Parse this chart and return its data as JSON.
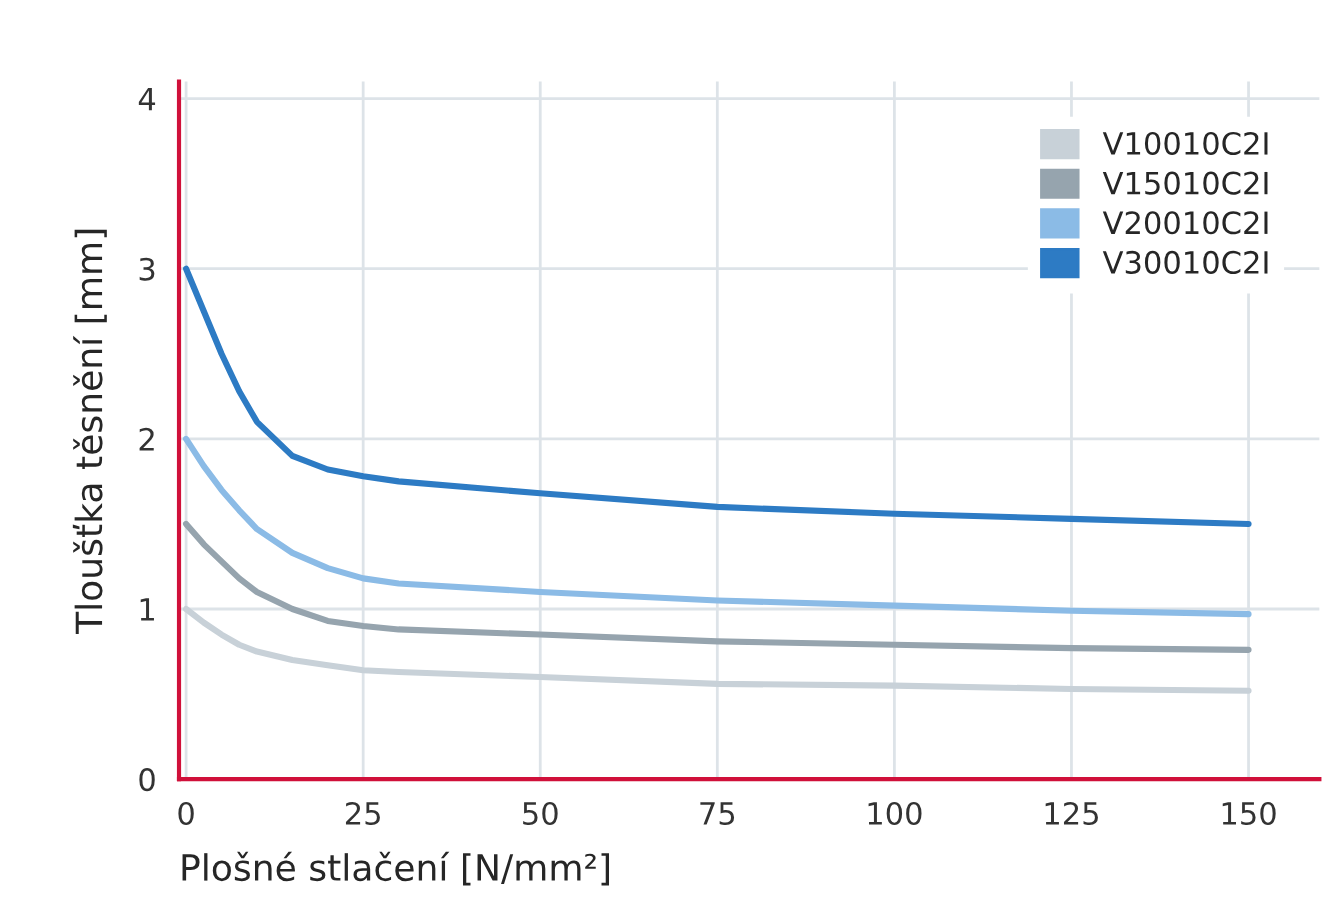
{
  "chart_data": {
    "type": "line",
    "xlabel": "Plošné stlačení [N/mm²]",
    "ylabel": "Tloušťka těsnění [mm]",
    "xlim": [
      -1,
      160
    ],
    "ylim": [
      0,
      4.1
    ],
    "xticks": [
      0,
      25,
      50,
      75,
      100,
      125,
      150
    ],
    "yticks": [
      0,
      1,
      2,
      3,
      4
    ],
    "grid": true,
    "legend": "top right",
    "marker": "none",
    "line_style": "solid",
    "x": [
      0,
      2.5,
      5,
      7.5,
      10,
      15,
      20,
      25,
      30,
      50,
      75,
      100,
      125,
      150
    ],
    "series": [
      {
        "name": "V10010C2I",
        "color": "#c8d1d8",
        "values": [
          1.0,
          0.92,
          0.85,
          0.79,
          0.75,
          0.7,
          0.67,
          0.64,
          0.63,
          0.6,
          0.56,
          0.55,
          0.53,
          0.52
        ]
      },
      {
        "name": "V15010C2I",
        "color": "#96a4ae",
        "values": [
          1.5,
          1.38,
          1.28,
          1.18,
          1.1,
          1.0,
          0.93,
          0.9,
          0.88,
          0.85,
          0.81,
          0.79,
          0.77,
          0.76
        ]
      },
      {
        "name": "V20010C2I",
        "color": "#8bbbe6",
        "values": [
          2.0,
          1.84,
          1.7,
          1.58,
          1.47,
          1.33,
          1.24,
          1.18,
          1.15,
          1.1,
          1.05,
          1.02,
          0.99,
          0.97
        ]
      },
      {
        "name": "V30010C2I",
        "color": "#2d7bc4",
        "values": [
          3.0,
          2.75,
          2.5,
          2.28,
          2.1,
          1.9,
          1.82,
          1.78,
          1.75,
          1.68,
          1.6,
          1.56,
          1.53,
          1.5
        ]
      }
    ]
  }
}
